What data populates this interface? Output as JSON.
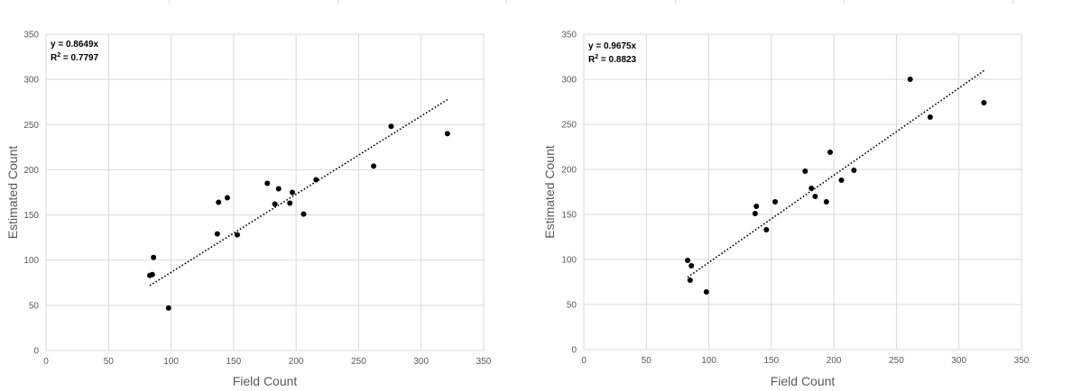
{
  "chart_data": [
    {
      "type": "scatter",
      "xlabel": "Field Count",
      "ylabel": "Estimated Count",
      "xlim": [
        0,
        350
      ],
      "ylim": [
        0,
        350
      ],
      "xticks": [
        "0",
        "50",
        "100",
        "150",
        "200",
        "250",
        "300",
        "350"
      ],
      "yticks": [
        "0",
        "50",
        "100",
        "150",
        "200",
        "250",
        "300",
        "350"
      ],
      "grid": true,
      "equation": "y = 0.8649x",
      "r2_label": "R",
      "r2_sup": "2",
      "r2_value": " = 0.7797",
      "trendline": {
        "slope": 0.8649,
        "x_range": [
          83,
          321
        ],
        "style": "dotted"
      },
      "points": [
        {
          "x": 83,
          "y": 83
        },
        {
          "x": 85,
          "y": 84
        },
        {
          "x": 86,
          "y": 103
        },
        {
          "x": 98,
          "y": 47
        },
        {
          "x": 137,
          "y": 129
        },
        {
          "x": 138,
          "y": 164
        },
        {
          "x": 145,
          "y": 169
        },
        {
          "x": 153,
          "y": 128
        },
        {
          "x": 177,
          "y": 185
        },
        {
          "x": 183,
          "y": 162
        },
        {
          "x": 186,
          "y": 179
        },
        {
          "x": 195,
          "y": 163
        },
        {
          "x": 197,
          "y": 175
        },
        {
          "x": 206,
          "y": 151
        },
        {
          "x": 216,
          "y": 189
        },
        {
          "x": 262,
          "y": 204
        },
        {
          "x": 276,
          "y": 248
        },
        {
          "x": 321,
          "y": 240
        }
      ]
    },
    {
      "type": "scatter",
      "xlabel": "Field Count",
      "ylabel": "Estimated Count",
      "xlim": [
        0,
        350
      ],
      "ylim": [
        0,
        350
      ],
      "xticks": [
        "0",
        "50",
        "100",
        "150",
        "200",
        "250",
        "300",
        "350"
      ],
      "yticks": [
        "0",
        "50",
        "100",
        "150",
        "200",
        "250",
        "300",
        "350"
      ],
      "grid": true,
      "equation": "y = 0.9675x",
      "r2_label": "R",
      "r2_sup": "2",
      "r2_value": " = 0.8823",
      "trendline": {
        "slope": 0.9675,
        "x_range": [
          83,
          320
        ],
        "style": "dotted"
      },
      "points": [
        {
          "x": 83,
          "y": 99
        },
        {
          "x": 85,
          "y": 77
        },
        {
          "x": 86,
          "y": 93
        },
        {
          "x": 98,
          "y": 64
        },
        {
          "x": 137,
          "y": 151
        },
        {
          "x": 138,
          "y": 159
        },
        {
          "x": 146,
          "y": 133
        },
        {
          "x": 153,
          "y": 164
        },
        {
          "x": 177,
          "y": 198
        },
        {
          "x": 182,
          "y": 179
        },
        {
          "x": 185,
          "y": 170
        },
        {
          "x": 194,
          "y": 164
        },
        {
          "x": 197,
          "y": 219
        },
        {
          "x": 206,
          "y": 188
        },
        {
          "x": 216,
          "y": 199
        },
        {
          "x": 261,
          "y": 300
        },
        {
          "x": 277,
          "y": 258
        },
        {
          "x": 320,
          "y": 274
        }
      ]
    }
  ]
}
